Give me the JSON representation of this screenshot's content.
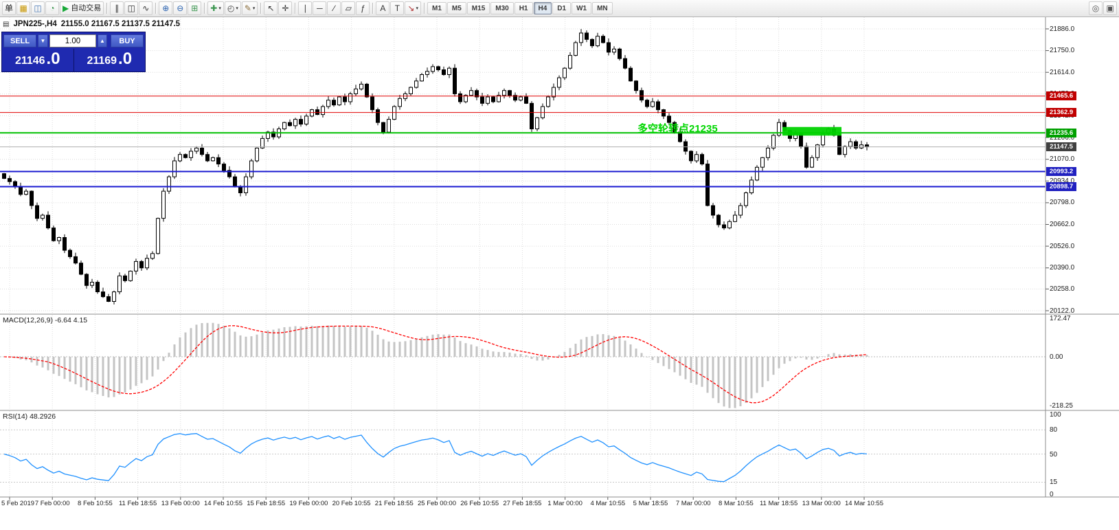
{
  "toolbar": {
    "items": [
      {
        "n": "new-order-button",
        "g": "单",
        "c": "#222"
      },
      {
        "n": "new-chart-icon",
        "g": "▦",
        "c": "#c89600"
      },
      {
        "n": "profiles-icon",
        "g": "◫",
        "c": "#4878b4"
      },
      {
        "n": "data-window-icon",
        "g": "◔",
        "c": "#3c9650"
      },
      {
        "n": "auto-trading-button",
        "g": "▶",
        "c": "#18a838",
        "t": "自动交易"
      },
      {
        "sep": true
      },
      {
        "n": "bar-chart-icon",
        "g": "∥",
        "c": "#333"
      },
      {
        "n": "candlestick-icon",
        "g": "◫",
        "c": "#333"
      },
      {
        "n": "line-chart-icon",
        "g": "∿",
        "c": "#333"
      },
      {
        "sep": true
      },
      {
        "n": "zoom-in-icon",
        "g": "⊕",
        "c": "#2a62b0"
      },
      {
        "n": "zoom-out-icon",
        "g": "⊖",
        "c": "#2a62b0"
      },
      {
        "n": "tile-windows-icon",
        "g": "⊞",
        "c": "#3c9650"
      },
      {
        "sep": true
      },
      {
        "n": "indicators-icon",
        "g": "✚",
        "c": "#3c9650",
        "cap": true
      },
      {
        "n": "periods-icon",
        "g": "◴",
        "c": "#444",
        "cap": true
      },
      {
        "n": "templates-icon",
        "g": "✎",
        "c": "#8a6d3b",
        "cap": true
      },
      {
        "sep": true
      },
      {
        "n": "cursor-icon",
        "g": "↖",
        "c": "#333"
      },
      {
        "n": "crosshair-icon",
        "g": "✛",
        "c": "#333"
      },
      {
        "sep": true
      },
      {
        "n": "vertical-line-icon",
        "g": "∣",
        "c": "#333"
      },
      {
        "n": "horizontal-line-icon",
        "g": "─",
        "c": "#333"
      },
      {
        "n": "trendline-icon",
        "g": "∕",
        "c": "#333"
      },
      {
        "n": "equidistant-channel-icon",
        "g": "▱",
        "c": "#333"
      },
      {
        "n": "fibonacci-icon",
        "g": "ƒ",
        "c": "#333"
      },
      {
        "sep": true
      },
      {
        "n": "text-icon",
        "g": "A",
        "c": "#333"
      },
      {
        "n": "text-label-icon",
        "g": "T",
        "c": "#333"
      },
      {
        "n": "arrows-icon",
        "g": "↘",
        "c": "#b03030",
        "cap": true
      },
      {
        "sep": true
      }
    ],
    "timeframes": [
      "M1",
      "M5",
      "M15",
      "M30",
      "H1",
      "H4",
      "D1",
      "W1",
      "MN"
    ],
    "active_timeframe": "H4",
    "right_items": [
      {
        "n": "magnifier-icon",
        "g": "◎",
        "c": "#555"
      },
      {
        "n": "chat-icon",
        "g": "▣",
        "c": "#555"
      }
    ]
  },
  "chart_header": {
    "icon": "▤",
    "symbol": "JPN225-,H4",
    "ohlc": "21155.0 21167.5 21137.5 21147.5"
  },
  "annotation": {
    "text": "多空轮转点21235",
    "color": "#00d600"
  },
  "one_click": {
    "sell_label": "SELL",
    "buy_label": "BUY",
    "volume": "1.00",
    "dropdown_glyph": "▼",
    "stepper_glyph": "▲",
    "sell_price": "21146",
    "sell_price_frac": ".0",
    "buy_price": "21169",
    "buy_price_frac": ".0"
  },
  "macd_panel": {
    "label": "MACD(12,26,9) -6.64 4.15",
    "axis_labels": [
      "172.47",
      "0.00",
      "-218.25"
    ]
  },
  "rsi_panel": {
    "label": "RSI(14) 48.2926",
    "axis_labels": [
      "100",
      "80",
      "50",
      "15",
      "0"
    ]
  },
  "chart_data": {
    "type": "candlestick",
    "symbol": "JPN225-",
    "timeframe": "H4",
    "ohlc_current": {
      "open": 21155.0,
      "high": 21167.5,
      "low": 21137.5,
      "close": 21147.5
    },
    "y_axis": {
      "ticks": [
        21886.0,
        21750.0,
        21614.0,
        21478.0,
        21342.0,
        21206.0,
        21070.0,
        20934.0,
        20798.0,
        20662.0,
        20526.0,
        20390.0,
        20258.0,
        20122.0
      ]
    },
    "x_axis_labels": [
      "5 Feb 2019",
      "7 Feb 00:00",
      "8 Feb 10:55",
      "11 Feb 18:55",
      "13 Feb 00:00",
      "14 Feb 10:55",
      "15 Feb 18:55",
      "19 Feb 00:00",
      "20 Feb 10:55",
      "21 Feb 18:55",
      "25 Feb 00:00",
      "26 Feb 10:55",
      "27 Feb 18:55",
      "1 Mar 00:00",
      "4 Mar 10:55",
      "5 Mar 18:55",
      "7 Mar 00:00",
      "8 Mar 10:55",
      "11 Mar 18:55",
      "13 Mar 00:00",
      "14 Mar 10:55"
    ],
    "candles": {
      "first_open": 20980,
      "closes": [
        20950,
        20930,
        20900,
        20850,
        20870,
        20780,
        20700,
        20720,
        20640,
        20560,
        20580,
        20500,
        20460,
        20420,
        20350,
        20280,
        20300,
        20240,
        20210,
        20180,
        20240,
        20340,
        20310,
        20370,
        20430,
        20390,
        20450,
        20480,
        20700,
        20870,
        20960,
        21060,
        21100,
        21080,
        21120,
        21140,
        21100,
        21060,
        21080,
        21040,
        21000,
        20960,
        20900,
        20860,
        20960,
        21060,
        21140,
        21200,
        21240,
        21210,
        21260,
        21300,
        21280,
        21320,
        21290,
        21340,
        21380,
        21350,
        21400,
        21440,
        21410,
        21460,
        21430,
        21480,
        21510,
        21540,
        21460,
        21380,
        21300,
        21240,
        21320,
        21400,
        21450,
        21480,
        21520,
        21560,
        21600,
        21620,
        21650,
        21630,
        21600,
        21640,
        21480,
        21430,
        21470,
        21500,
        21460,
        21420,
        21460,
        21430,
        21470,
        21500,
        21470,
        21440,
        21460,
        21420,
        21260,
        21330,
        21400,
        21460,
        21520,
        21580,
        21640,
        21720,
        21800,
        21860,
        21820,
        21780,
        21840,
        21800,
        21740,
        21760,
        21700,
        21640,
        21560,
        21500,
        21440,
        21400,
        21430,
        21380,
        21340,
        21300,
        21240,
        21180,
        21120,
        21060,
        21100,
        21040,
        20780,
        20720,
        20660,
        20640,
        20680,
        20720,
        20780,
        20860,
        20940,
        21020,
        21080,
        21140,
        21220,
        21300,
        21250,
        21200,
        21230,
        21150,
        21020,
        21080,
        21160,
        21230,
        21260,
        21220,
        21100,
        21150,
        21180,
        21140,
        21160,
        21147.5
      ]
    },
    "levels": [
      {
        "price": 21465.6,
        "color": "#e00000",
        "width": 1,
        "label": "21465.6",
        "label_bg": "#c00000"
      },
      {
        "price": 21362.9,
        "color": "#e00000",
        "width": 1,
        "label": "21362.9",
        "label_bg": "#c00000"
      },
      {
        "price": 21235.6,
        "color": "#00c000",
        "width": 2,
        "label": "21235.6",
        "label_bg": "#00a000"
      },
      {
        "price": 21147.5,
        "color": "#b0b0b0",
        "width": 1,
        "label": "21147.5",
        "label_bg": "#404040"
      },
      {
        "price": 20993.2,
        "color": "#1a1ad0",
        "width": 2,
        "label": "20993.2",
        "label_bg": "#2020c0"
      },
      {
        "price": 20898.7,
        "color": "#1a1ad0",
        "width": 2,
        "label": "20898.7",
        "label_bg": "#2020c0"
      }
    ],
    "highlight_box": {
      "bar_start": 142,
      "bar_end": 152,
      "price_top": 21272,
      "price_bottom": 21218,
      "color": "#00d200"
    },
    "indicators": [
      {
        "name": "MACD",
        "params": [
          12,
          26,
          9
        ],
        "display": "MACD(12,26,9) -6.64 4.15",
        "scale_max": 172.47,
        "scale_min": -218.25
      },
      {
        "name": "RSI",
        "params": [
          14
        ],
        "display": "RSI(14) 48.2926",
        "levels": [
          80,
          50,
          15
        ],
        "scale": [
          0,
          100
        ]
      }
    ]
  }
}
